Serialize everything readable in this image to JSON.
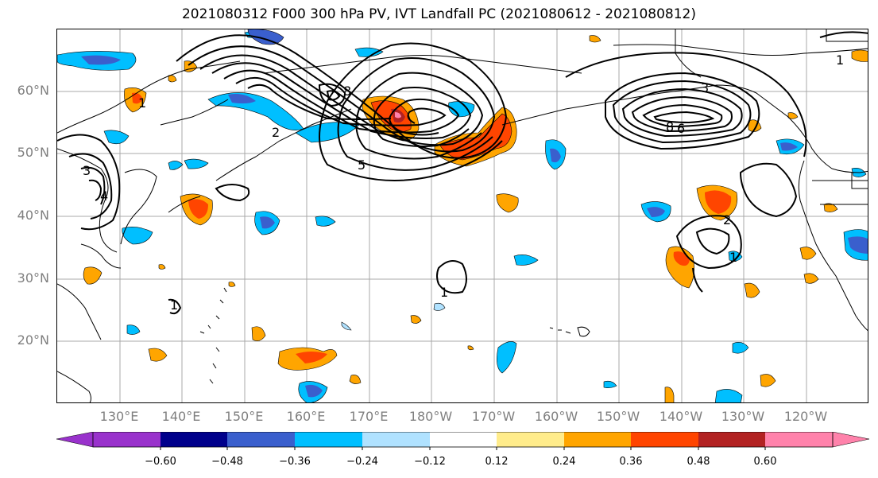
{
  "title": "2021080312 F000 300 hPa PV, IVT Landfall PC (2021080612 - 2021080812)",
  "lat_labels": [
    "60°N",
    "50°N",
    "40°N",
    "30°N",
    "20°N"
  ],
  "lon_labels": [
    "130°E",
    "140°E",
    "150°E",
    "160°E",
    "170°E",
    "180°W",
    "170°W",
    "160°W",
    "150°W",
    "140°W",
    "130°W",
    "120°W"
  ],
  "contour_labels": [
    "8",
    "8",
    "6",
    "5",
    "1",
    "2",
    "3",
    "4",
    "1",
    "2",
    "1",
    "1",
    "1",
    "3"
  ],
  "colorbar": {
    "colors": [
      "#9932cc",
      "#00008b",
      "#3a5fcd",
      "#00bfff",
      "#b0e2ff",
      "#ffffff",
      "#ffec8b",
      "#ffa500",
      "#ff4500",
      "#b22222",
      "#ff82ab"
    ],
    "tick_labels": [
      "−0.60",
      "−0.48",
      "−0.36",
      "−0.24",
      "−0.12",
      "0.12",
      "0.24",
      "0.36",
      "0.48",
      "0.60"
    ]
  },
  "colors": {
    "grid": "#a9a9a9",
    "coast": "#000000",
    "contour": "#000000",
    "axis_label": "#7f7f7f"
  }
}
